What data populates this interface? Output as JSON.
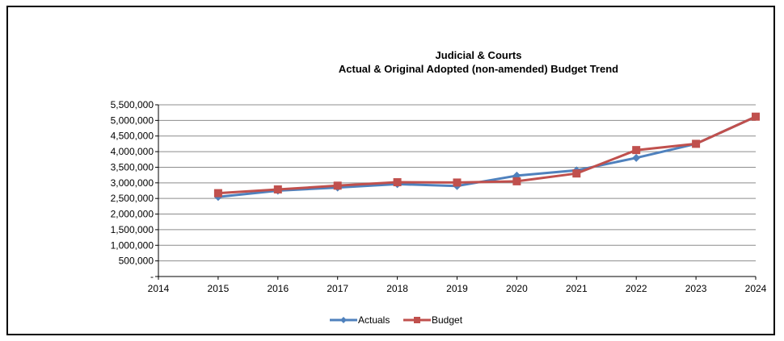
{
  "chart_data": {
    "type": "line",
    "title": "Judicial & Courts",
    "subtitle": "Actual & Original Adopted (non-amended) Budget Trend",
    "x_ticks": [
      "2014",
      "2015",
      "2016",
      "2017",
      "2018",
      "2019",
      "2020",
      "2021",
      "2022",
      "2023",
      "2024"
    ],
    "y_ticks": [
      "-",
      "500,000",
      "1,000,000",
      "1,500,000",
      "2,000,000",
      "2,500,000",
      "3,000,000",
      "3,500,000",
      "4,000,000",
      "4,500,000",
      "5,000,000",
      "5,500,000"
    ],
    "xlim": [
      2014,
      2024
    ],
    "ylim": [
      0,
      5500000
    ],
    "grid": true,
    "legend_position": "bottom",
    "series": [
      {
        "name": "Actuals",
        "color": "#4f81bd",
        "marker": "diamond",
        "x": [
          2015,
          2016,
          2017,
          2018,
          2019,
          2020,
          2021,
          2022,
          2023,
          2024
        ],
        "values": [
          2550000,
          2750000,
          2850000,
          2960000,
          2900000,
          3230000,
          3400000,
          3800000,
          4250000,
          5120000
        ]
      },
      {
        "name": "Budget",
        "color": "#c0504d",
        "marker": "square",
        "x": [
          2015,
          2016,
          2017,
          2018,
          2019,
          2020,
          2021,
          2022,
          2023,
          2024
        ],
        "values": [
          2670000,
          2790000,
          2910000,
          3020000,
          3010000,
          3050000,
          3300000,
          4050000,
          4250000,
          5120000
        ]
      }
    ]
  }
}
